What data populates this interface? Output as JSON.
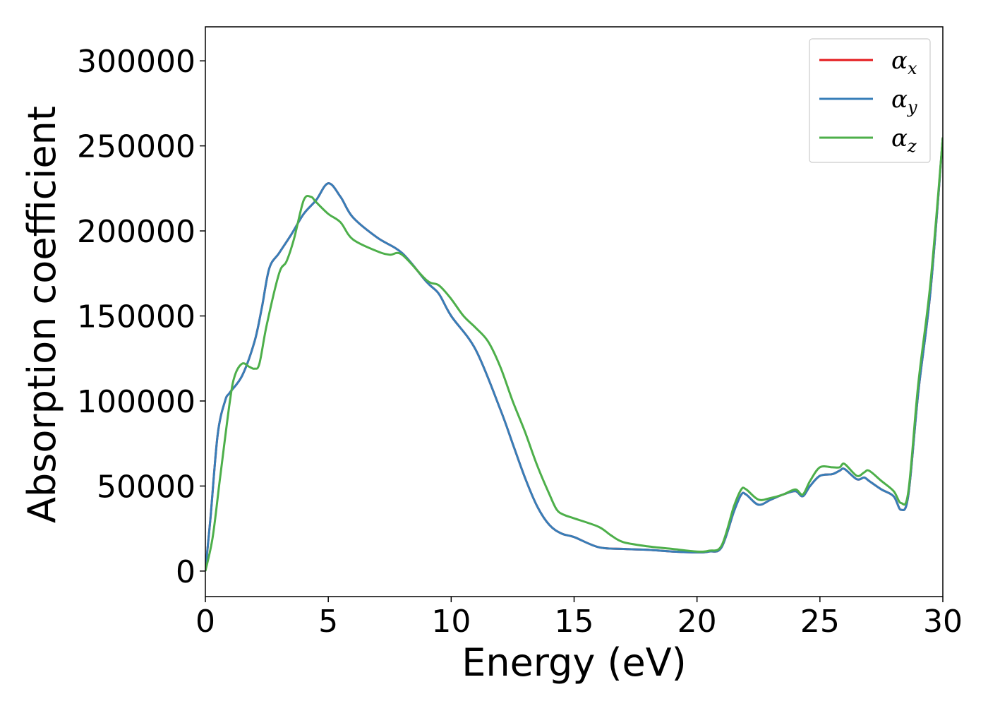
{
  "chart_data": {
    "type": "line",
    "title": "",
    "xlabel": "Energy (eV)",
    "ylabel": "Absorption coefficient",
    "xlim": [
      0,
      30
    ],
    "ylim": [
      -15000,
      320000
    ],
    "xticks": [
      0,
      5,
      10,
      15,
      20,
      25,
      30
    ],
    "yticks": [
      0,
      50000,
      100000,
      150000,
      200000,
      250000,
      300000
    ],
    "xtick_labels": [
      "0",
      "5",
      "10",
      "15",
      "20",
      "25",
      "30"
    ],
    "ytick_labels": [
      "0",
      "50000",
      "100000",
      "150000",
      "200000",
      "250000",
      "300000"
    ],
    "grid": false,
    "legend_position": "top-right",
    "legend": [
      {
        "symbol": "α",
        "subscript": "x"
      },
      {
        "symbol": "α",
        "subscript": "y"
      },
      {
        "symbol": "α",
        "subscript": "z"
      }
    ],
    "series": [
      {
        "name": "αx",
        "color": "#e41a1c",
        "x": [
          0,
          0.2,
          0.5,
          0.8,
          1.0,
          1.5,
          2.0,
          2.3,
          2.6,
          3.0,
          3.5,
          4.0,
          4.5,
          5.0,
          5.5,
          6.0,
          7.0,
          8.0,
          9.0,
          9.5,
          10.0,
          11.0,
          12.0,
          12.5,
          13.0,
          13.5,
          14.0,
          14.5,
          15.0,
          16.0,
          17.0,
          18.0,
          19.0,
          20.0,
          20.5,
          21.0,
          21.5,
          21.8,
          22.0,
          22.5,
          23.0,
          23.5,
          24.0,
          24.3,
          24.6,
          25.0,
          25.5,
          25.8,
          26.0,
          26.5,
          26.8,
          27.0,
          27.5,
          28.0,
          28.3,
          28.6,
          29.0,
          29.5,
          30.0
        ],
        "y": [
          0,
          30000,
          80000,
          100000,
          105000,
          115000,
          135000,
          155000,
          178000,
          187000,
          198000,
          210000,
          218000,
          228000,
          220000,
          208000,
          196000,
          187000,
          170000,
          163000,
          150000,
          130000,
          95000,
          75000,
          55000,
          38000,
          27000,
          22000,
          20000,
          14000,
          13000,
          12500,
          11500,
          11000,
          11500,
          14000,
          35000,
          45000,
          45000,
          39000,
          42000,
          45000,
          47000,
          44000,
          50000,
          56000,
          57000,
          59000,
          60000,
          54000,
          55000,
          53000,
          48000,
          44000,
          36000,
          45000,
          105000,
          165000,
          255000
        ]
      },
      {
        "name": "αy",
        "color": "#377eb8",
        "x": [
          0,
          0.2,
          0.5,
          0.8,
          1.0,
          1.5,
          2.0,
          2.3,
          2.6,
          3.0,
          3.5,
          4.0,
          4.5,
          5.0,
          5.5,
          6.0,
          7.0,
          8.0,
          9.0,
          9.5,
          10.0,
          11.0,
          12.0,
          12.5,
          13.0,
          13.5,
          14.0,
          14.5,
          15.0,
          16.0,
          17.0,
          18.0,
          19.0,
          20.0,
          20.5,
          21.0,
          21.5,
          21.8,
          22.0,
          22.5,
          23.0,
          23.5,
          24.0,
          24.3,
          24.6,
          25.0,
          25.5,
          25.8,
          26.0,
          26.5,
          26.8,
          27.0,
          27.5,
          28.0,
          28.3,
          28.6,
          29.0,
          29.5,
          30.0
        ],
        "y": [
          0,
          30000,
          80000,
          100000,
          105000,
          115000,
          135000,
          155000,
          178000,
          187000,
          198000,
          210000,
          218000,
          228000,
          220000,
          208000,
          196000,
          187000,
          170000,
          163000,
          150000,
          130000,
          95000,
          75000,
          55000,
          38000,
          27000,
          22000,
          20000,
          14000,
          13000,
          12500,
          11500,
          11000,
          11500,
          14000,
          35000,
          45000,
          45000,
          39000,
          42000,
          45000,
          47000,
          44000,
          50000,
          56000,
          57000,
          59000,
          60000,
          54000,
          55000,
          53000,
          48000,
          44000,
          36000,
          45000,
          105000,
          165000,
          255000
        ]
      },
      {
        "name": "αz",
        "color": "#4daf4a",
        "x": [
          0,
          0.3,
          0.6,
          1.0,
          1.2,
          1.5,
          1.8,
          2.0,
          2.2,
          2.5,
          3.0,
          3.3,
          3.6,
          4.0,
          4.3,
          4.5,
          5.0,
          5.5,
          6.0,
          7.0,
          7.5,
          8.0,
          9.0,
          9.5,
          10.0,
          10.5,
          11.0,
          11.5,
          12.0,
          12.5,
          13.0,
          13.5,
          14.0,
          14.3,
          14.6,
          15.0,
          16.0,
          16.5,
          17.0,
          18.0,
          19.0,
          20.0,
          20.5,
          21.0,
          21.5,
          21.8,
          22.0,
          22.5,
          23.0,
          23.5,
          24.0,
          24.3,
          24.6,
          25.0,
          25.5,
          25.8,
          26.0,
          26.5,
          26.8,
          27.0,
          27.5,
          28.0,
          28.3,
          28.6,
          29.0,
          29.5,
          30.0
        ],
        "y": [
          0,
          20000,
          55000,
          100000,
          115000,
          122000,
          120000,
          119000,
          122000,
          145000,
          175000,
          182000,
          195000,
          218000,
          220000,
          217000,
          210000,
          205000,
          195000,
          188000,
          186000,
          186000,
          171000,
          168000,
          160000,
          150000,
          143000,
          135000,
          120000,
          100000,
          82000,
          62000,
          45000,
          36000,
          33000,
          31000,
          26000,
          21000,
          17000,
          14500,
          13000,
          11500,
          12000,
          15000,
          38000,
          48000,
          48000,
          42000,
          43000,
          45000,
          48000,
          45000,
          53000,
          61000,
          61000,
          61000,
          63000,
          56000,
          58000,
          59000,
          53000,
          47000,
          40000,
          47000,
          110000,
          170000,
          255000
        ]
      }
    ]
  }
}
